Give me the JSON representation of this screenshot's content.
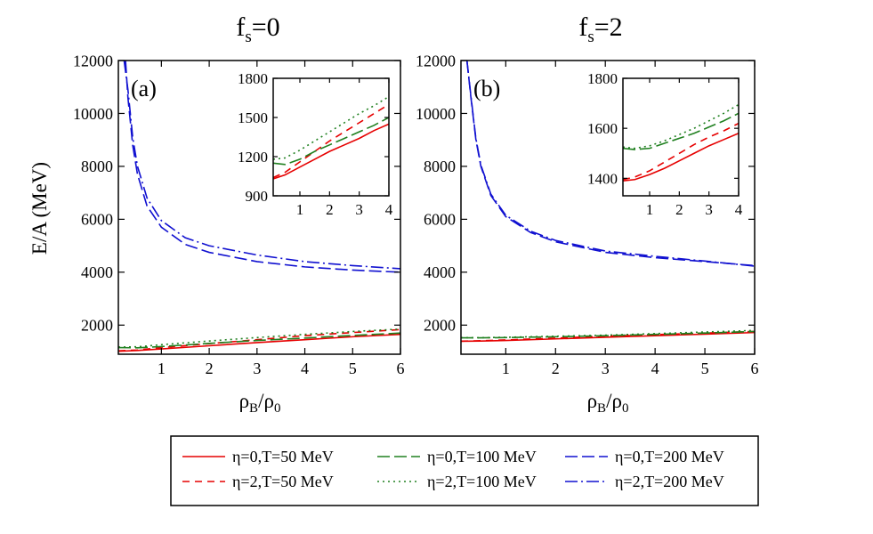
{
  "figure": {
    "ylabel": "E/A (MeV)",
    "xlabel": "ρ",
    "xlabel_sub1": "B",
    "xlabel_div": "/ρ",
    "xlabel_sub2": "0"
  },
  "legend": {
    "items": [
      {
        "label": "η=0,T=50 MeV",
        "color": "#e60000",
        "dash": "solid"
      },
      {
        "label": "η=0,T=100 MeV",
        "color": "#208020",
        "dash": "longdash"
      },
      {
        "label": "η=0,T=200 MeV",
        "color": "#1010d0",
        "dash": "longdash"
      },
      {
        "label": "η=2,T=50 MeV",
        "color": "#e60000",
        "dash": "dash"
      },
      {
        "label": "η=2,T=100 MeV",
        "color": "#208020",
        "dash": "dot"
      },
      {
        "label": "η=2,T=200 MeV",
        "color": "#1010d0",
        "dash": "dashdot"
      }
    ]
  },
  "chart_data": [
    {
      "type": "line",
      "panel_label": "(a)",
      "title": "f",
      "title_sub": "s",
      "title_eq": "=0",
      "xlabel": "ρB/ρ0",
      "ylabel": "E/A (MeV)",
      "xlim": [
        0.1,
        6
      ],
      "ylim": [
        900,
        12000
      ],
      "xticks": [
        1,
        2,
        3,
        4,
        5,
        6
      ],
      "yticks": [
        2000,
        4000,
        6000,
        8000,
        10000,
        12000
      ],
      "series": [
        {
          "name": "η=0,T=50 MeV",
          "x": [
            0.1,
            0.5,
            1,
            2,
            3,
            4,
            5,
            6
          ],
          "y": [
            1010,
            1040,
            1100,
            1220,
            1340,
            1450,
            1560,
            1650
          ]
        },
        {
          "name": "η=2,T=50 MeV",
          "x": [
            0.1,
            0.5,
            1,
            2,
            3,
            4,
            5,
            6
          ],
          "y": [
            1030,
            1060,
            1150,
            1300,
            1450,
            1600,
            1720,
            1830
          ]
        },
        {
          "name": "η=0,T=100 MeV",
          "x": [
            0.1,
            0.5,
            1,
            2,
            3,
            4,
            5,
            6
          ],
          "y": [
            1150,
            1140,
            1190,
            1310,
            1420,
            1510,
            1610,
            1700
          ]
        },
        {
          "name": "η=2,T=100 MeV",
          "x": [
            0.1,
            0.5,
            1,
            2,
            3,
            4,
            5,
            6
          ],
          "y": [
            1170,
            1180,
            1260,
            1400,
            1530,
            1650,
            1760,
            1850
          ]
        },
        {
          "name": "η=0,T=200 MeV",
          "x": [
            0.25,
            0.3,
            0.4,
            0.5,
            0.7,
            1,
            1.5,
            2,
            3,
            4,
            5,
            6
          ],
          "y": [
            12000,
            10600,
            8800,
            7700,
            6500,
            5700,
            5050,
            4750,
            4400,
            4200,
            4080,
            4000
          ]
        },
        {
          "name": "η=2,T=200 MeV",
          "x": [
            0.22,
            0.3,
            0.4,
            0.5,
            0.7,
            1,
            1.5,
            2,
            3,
            4,
            5,
            6
          ],
          "y": [
            12000,
            10900,
            9100,
            8000,
            6800,
            5950,
            5300,
            5000,
            4650,
            4400,
            4250,
            4130
          ]
        }
      ],
      "inset": {
        "xlim": [
          0.1,
          4
        ],
        "ylim": [
          900,
          1800
        ],
        "xticks": [
          1,
          2,
          3,
          4
        ],
        "yticks": [
          900,
          1200,
          1500,
          1800
        ],
        "series": [
          {
            "name": "η=0,T=50 MeV",
            "x": [
              0.1,
              0.5,
              1,
              1.5,
              2,
              2.5,
              3,
              3.5,
              4
            ],
            "y": [
              1030,
              1060,
              1120,
              1180,
              1240,
              1290,
              1340,
              1400,
              1450
            ]
          },
          {
            "name": "η=2,T=50 MeV",
            "x": [
              0.1,
              0.5,
              1,
              1.5,
              2,
              2.5,
              3,
              3.5,
              4
            ],
            "y": [
              1040,
              1080,
              1160,
              1240,
              1320,
              1390,
              1460,
              1530,
              1600
            ]
          },
          {
            "name": "η=0,T=100 MeV",
            "x": [
              0.1,
              0.5,
              1,
              1.5,
              2,
              2.5,
              3,
              3.5,
              4
            ],
            "y": [
              1150,
              1140,
              1180,
              1240,
              1290,
              1340,
              1390,
              1440,
              1500
            ]
          },
          {
            "name": "η=2,T=100 MeV",
            "x": [
              0.1,
              0.5,
              1,
              1.5,
              2,
              2.5,
              3,
              3.5,
              4
            ],
            "y": [
              1180,
              1190,
              1250,
              1320,
              1390,
              1460,
              1530,
              1590,
              1660
            ]
          }
        ]
      }
    },
    {
      "type": "line",
      "panel_label": "(b)",
      "title": "f",
      "title_sub": "s",
      "title_eq": "=2",
      "xlabel": "ρB/ρ0",
      "ylabel": "E/A (MeV)",
      "xlim": [
        0.1,
        6
      ],
      "ylim": [
        900,
        12000
      ],
      "xticks": [
        1,
        2,
        3,
        4,
        5,
        6
      ],
      "yticks": [
        2000,
        4000,
        6000,
        8000,
        10000,
        12000
      ],
      "series": [
        {
          "name": "η=0,T=50 MeV",
          "x": [
            0.1,
            0.5,
            1,
            2,
            3,
            4,
            5,
            6
          ],
          "y": [
            1390,
            1400,
            1420,
            1480,
            1540,
            1600,
            1660,
            1720
          ]
        },
        {
          "name": "η=2,T=50 MeV",
          "x": [
            0.1,
            0.5,
            1,
            2,
            3,
            4,
            5,
            6
          ],
          "y": [
            1395,
            1410,
            1440,
            1510,
            1580,
            1640,
            1700,
            1760
          ]
        },
        {
          "name": "η=0,T=100 MeV",
          "x": [
            0.1,
            0.5,
            1,
            2,
            3,
            4,
            5,
            6
          ],
          "y": [
            1520,
            1520,
            1530,
            1560,
            1600,
            1650,
            1700,
            1760
          ]
        },
        {
          "name": "η=2,T=100 MeV",
          "x": [
            0.1,
            0.5,
            1,
            2,
            3,
            4,
            5,
            6
          ],
          "y": [
            1525,
            1525,
            1540,
            1580,
            1620,
            1680,
            1740,
            1800
          ]
        },
        {
          "name": "η=0,T=200 MeV",
          "x": [
            0.22,
            0.3,
            0.4,
            0.5,
            0.7,
            1,
            1.5,
            2,
            3,
            4,
            5,
            6
          ],
          "y": [
            12000,
            10600,
            9000,
            8000,
            6900,
            6100,
            5500,
            5150,
            4750,
            4550,
            4400,
            4250
          ]
        },
        {
          "name": "η=2,T=200 MeV",
          "x": [
            0.22,
            0.3,
            0.4,
            0.5,
            0.7,
            1,
            1.5,
            2,
            3,
            4,
            5,
            6
          ],
          "y": [
            12000,
            10650,
            9050,
            8050,
            6950,
            6150,
            5550,
            5200,
            4800,
            4600,
            4420,
            4230
          ]
        }
      ],
      "inset": {
        "xlim": [
          0.1,
          4
        ],
        "ylim": [
          1330,
          1800
        ],
        "xticks": [
          1,
          2,
          3,
          4
        ],
        "yticks": [
          1400,
          1600,
          1800
        ],
        "series": [
          {
            "name": "η=0,T=50 MeV",
            "x": [
              0.1,
              0.5,
              1,
              1.5,
              2,
              2.5,
              3,
              3.5,
              4
            ],
            "y": [
              1390,
              1395,
              1415,
              1440,
              1470,
              1500,
              1530,
              1555,
              1580
            ]
          },
          {
            "name": "η=2,T=50 MeV",
            "x": [
              0.1,
              0.5,
              1,
              1.5,
              2,
              2.5,
              3,
              3.5,
              4
            ],
            "y": [
              1395,
              1405,
              1430,
              1465,
              1500,
              1535,
              1565,
              1590,
              1620
            ]
          },
          {
            "name": "η=0,T=100 MeV",
            "x": [
              0.1,
              0.5,
              1,
              1.5,
              2,
              2.5,
              3,
              3.5,
              4
            ],
            "y": [
              1520,
              1515,
              1520,
              1540,
              1560,
              1580,
              1605,
              1630,
              1660
            ]
          },
          {
            "name": "η=2,T=100 MeV",
            "x": [
              0.1,
              0.5,
              1,
              1.5,
              2,
              2.5,
              3,
              3.5,
              4
            ],
            "y": [
              1525,
              1520,
              1530,
              1550,
              1575,
              1600,
              1630,
              1660,
              1695
            ]
          }
        ]
      }
    }
  ]
}
